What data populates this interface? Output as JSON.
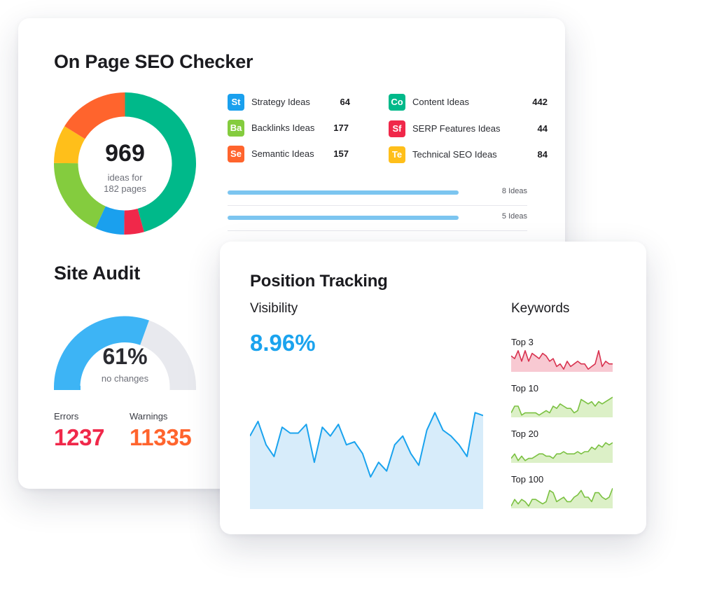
{
  "seo_checker": {
    "title": "On Page SEO Checker",
    "total_ideas": "969",
    "total_sub_line1": "ideas for",
    "total_sub_line2": "182 pages",
    "donut_segments": [
      {
        "name": "Content Ideas",
        "value": 442,
        "color": "#00b98a"
      },
      {
        "name": "SERP Features Ideas",
        "value": 44,
        "color": "#f0284a"
      },
      {
        "name": "Strategy Ideas",
        "value": 64,
        "color": "#1aa0ee"
      },
      {
        "name": "Backlinks Ideas",
        "value": 177,
        "color": "#84cc3e"
      },
      {
        "name": "Technical SEO Ideas",
        "value": 84,
        "color": "#ffbf1a"
      },
      {
        "name": "Semantic Ideas",
        "value": 157,
        "color": "#ff642d"
      }
    ],
    "ideas": [
      {
        "abbr": "St",
        "label": "Strategy Ideas",
        "count": "64",
        "color": "#1aa0ee"
      },
      {
        "abbr": "Ba",
        "label": "Backlinks Ideas",
        "count": "177",
        "color": "#84cc3e"
      },
      {
        "abbr": "Se",
        "label": "Semantic Ideas",
        "count": "157",
        "color": "#ff642d"
      },
      {
        "abbr": "Co",
        "label": "Content Ideas",
        "count": "442",
        "color": "#00b98a"
      },
      {
        "abbr": "Sf",
        "label": "SERP Features Ideas",
        "count": "44",
        "color": "#f0284a"
      },
      {
        "abbr": "Te",
        "label": "Technical SEO Ideas",
        "count": "84",
        "color": "#ffbf1a"
      }
    ],
    "idea_bars": [
      {
        "text": "8 Ideas",
        "fraction": 0.77
      },
      {
        "text": "5 Ideas",
        "fraction": 0.77
      }
    ]
  },
  "site_audit": {
    "title": "Site Audit",
    "percent": 61,
    "percent_text": "61%",
    "sub": "no changes",
    "gauge_colors": {
      "fill": "#3db4f5",
      "track": "#e8e9ee"
    },
    "errors_label": "Errors",
    "errors_value": "1237",
    "errors_color": "#f0284a",
    "warnings_label": "Warnings",
    "warnings_value": "11335",
    "warnings_color": "#ff642d"
  },
  "position_tracking": {
    "title": "Position Tracking",
    "visibility_label": "Visibility",
    "visibility_value": "8.96%",
    "keywords_label": "Keywords",
    "chart_data": [
      {
        "type": "area",
        "series": [
          {
            "values": [
              55,
              50,
              58,
              62,
              52,
              54,
              54,
              51,
              64,
              52,
              55,
              51,
              58,
              57,
              61,
              69,
              64,
              67,
              58,
              55,
              61,
              65,
              53,
              47,
              53,
              55,
              58,
              62,
              47,
              48
            ]
          }
        ],
        "color": "#1aa3ee",
        "fill": "#d7ecfa"
      },
      {
        "type": "area",
        "label": "Top 3",
        "series": [
          {
            "values": [
              25,
              26,
              23,
              27,
              23,
              27,
              24,
              25,
              26,
              24,
              25,
              27,
              26,
              29,
              28,
              30,
              27,
              29,
              28,
              27,
              28,
              28,
              30,
              29,
              28,
              23,
              29,
              27,
              28,
              28
            ]
          }
        ],
        "color": "#d8324f",
        "fill": "#f8c9d2"
      },
      {
        "type": "area",
        "label": "Top 10",
        "series": [
          {
            "values": [
              7,
              4,
              4,
              8,
              7,
              7,
              7,
              7,
              8,
              7,
              6,
              7,
              4,
              5,
              3,
              4,
              5,
              5,
              7,
              6,
              1,
              2,
              3,
              2,
              4,
              2,
              3,
              2,
              1,
              0
            ]
          }
        ],
        "color": "#7bc142",
        "fill": "#dcf0c7"
      },
      {
        "type": "area",
        "label": "Top 20",
        "series": [
          {
            "values": [
              8,
              6,
              9,
              7,
              9,
              8,
              8,
              7,
              6,
              6,
              7,
              7,
              8,
              6,
              6,
              5,
              6,
              6,
              6,
              5,
              6,
              5,
              5,
              3,
              4,
              2,
              3,
              1,
              2,
              1
            ]
          }
        ],
        "color": "#7bc142",
        "fill": "#dcf0c7"
      },
      {
        "type": "area",
        "label": "Top 100",
        "series": [
          {
            "values": [
              8,
              5,
              7,
              5,
              6,
              8,
              5,
              5,
              6,
              7,
              6,
              1,
              2,
              6,
              5,
              4,
              6,
              6,
              4,
              3,
              1,
              4,
              4,
              6,
              2,
              2,
              4,
              5,
              4,
              0
            ]
          }
        ],
        "color": "#7bc142",
        "fill": "#dcf0c7"
      }
    ]
  }
}
